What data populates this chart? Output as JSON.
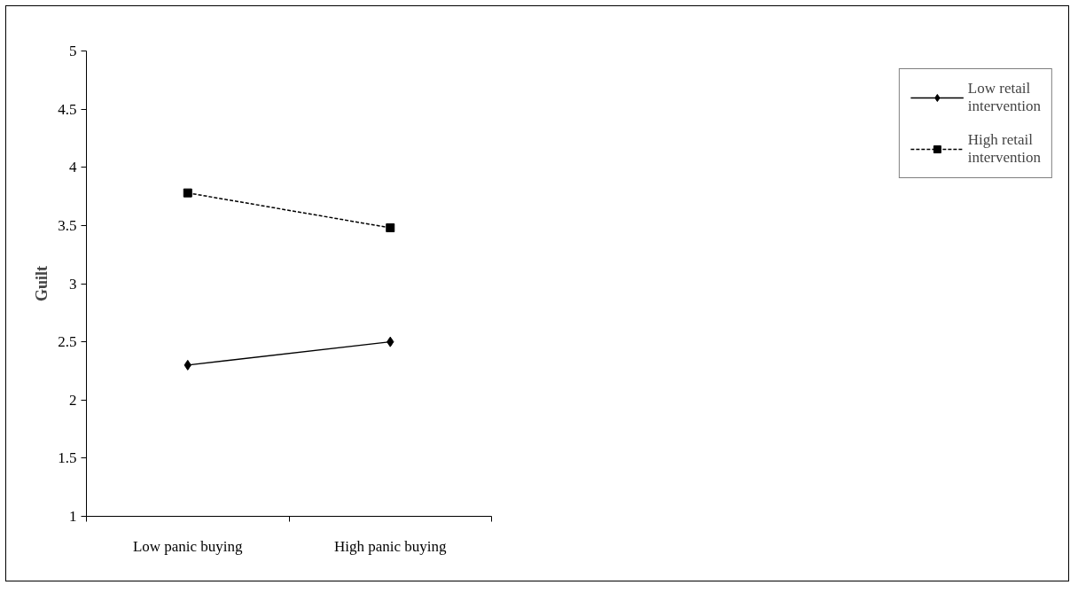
{
  "chart_data": {
    "type": "line",
    "ylabel": "Guilt",
    "categories": [
      "Low panic buying",
      "High panic buying"
    ],
    "series": [
      {
        "name": "Low retail intervention",
        "color": "#000000",
        "values": [
          2.3,
          2.5
        ],
        "marker": "diamond",
        "line_style": "solid"
      },
      {
        "name": "High retail intervention",
        "color": "#000000",
        "values": [
          3.78,
          3.48
        ],
        "marker": "square",
        "line_style": "dashed"
      }
    ],
    "ylim": [
      1,
      5
    ],
    "yticks": [
      1,
      1.5,
      2,
      2.5,
      3,
      3.5,
      4,
      4.5,
      5
    ],
    "grid": false,
    "legend": "right"
  }
}
